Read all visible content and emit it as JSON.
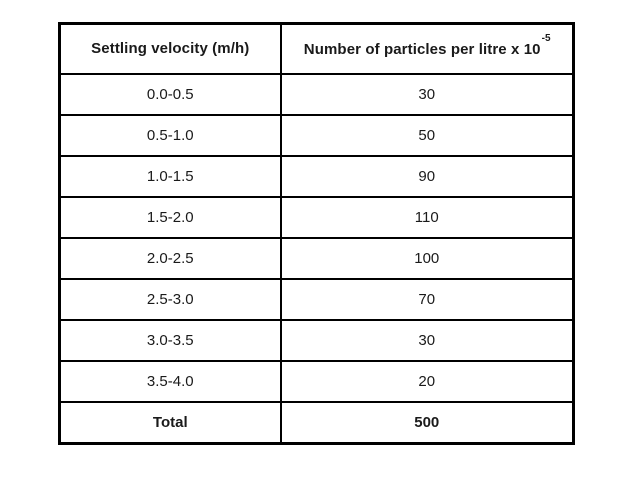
{
  "table": {
    "columns": [
      {
        "label": "Settling velocity (m/h)"
      },
      {
        "label": "Number of particles per litre x 10",
        "superscript": "-5"
      }
    ],
    "rows": [
      {
        "velocity": "0.0-0.5",
        "particles": "30"
      },
      {
        "velocity": "0.5-1.0",
        "particles": "50"
      },
      {
        "velocity": "1.0-1.5",
        "particles": "90"
      },
      {
        "velocity": "1.5-2.0",
        "particles": "110"
      },
      {
        "velocity": "2.0-2.5",
        "particles": "100"
      },
      {
        "velocity": "2.5-3.0",
        "particles": "70"
      },
      {
        "velocity": "3.0-3.5",
        "particles": "30"
      },
      {
        "velocity": "3.5-4.0",
        "particles": "20"
      }
    ],
    "total": {
      "label": "Total",
      "value": "500"
    }
  },
  "colors": {
    "border": "#000000",
    "text": "#1a1a1a",
    "background": "#ffffff"
  }
}
